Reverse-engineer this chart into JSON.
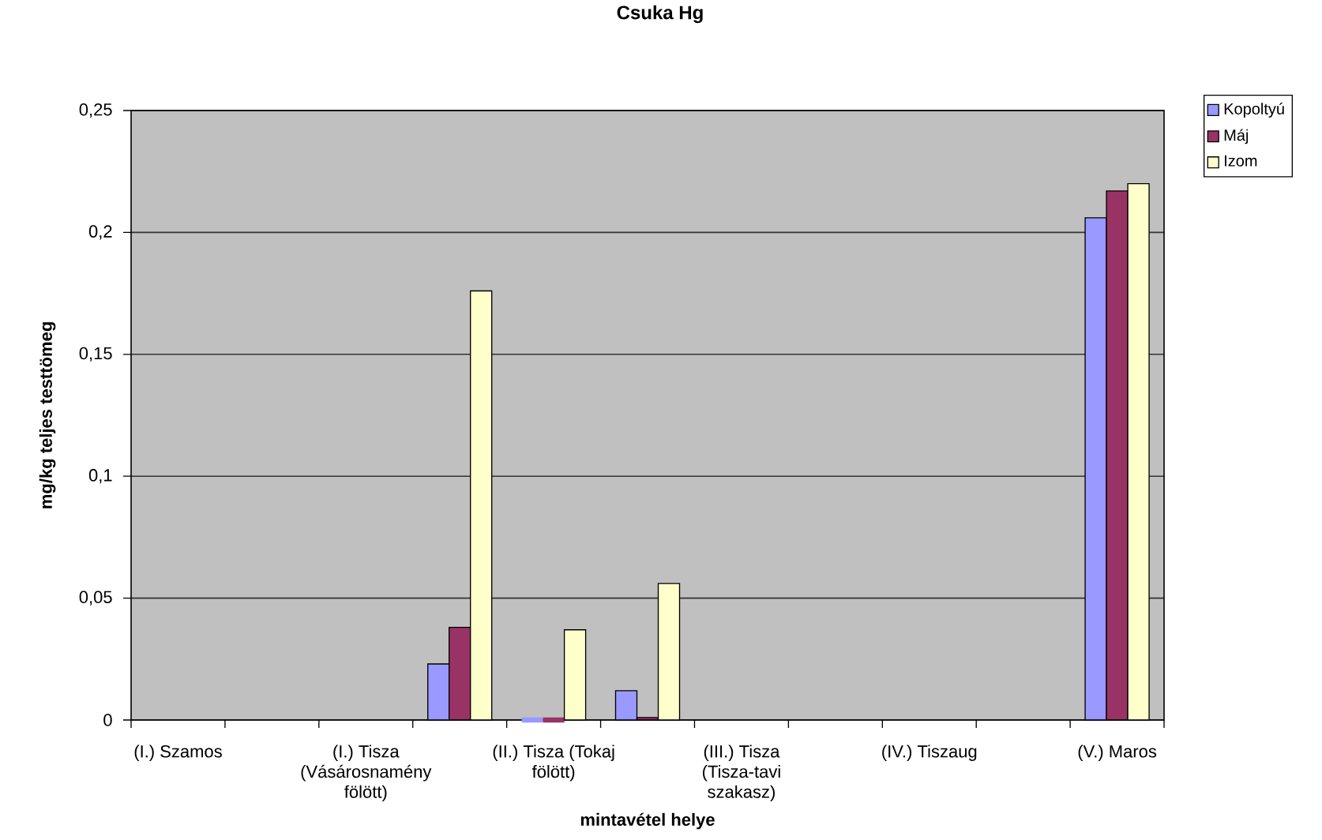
{
  "chart_data": {
    "type": "bar",
    "title": "Csuka Hg",
    "xlabel": "mintavétel helye",
    "ylabel": "mg/kg teljes testtömeg",
    "categories": [
      "(I.) Szamos",
      null,
      "(I.) Tisza (Vásárosnamény fölött)",
      null,
      "(II.) Tisza (Tokaj fölött)",
      null,
      "(III.) Tisza (Tisza-tavi szakasz)",
      null,
      "(IV.) Tiszaug",
      null,
      "(V.) Maros"
    ],
    "series": [
      {
        "name": "Kopoltyú",
        "color": "#9999ff",
        "values": [
          null,
          null,
          null,
          0.023,
          0,
          0.012,
          null,
          null,
          null,
          null,
          0.206
        ]
      },
      {
        "name": "Máj",
        "color": "#993366",
        "values": [
          null,
          null,
          null,
          0.038,
          0,
          0.001,
          null,
          null,
          null,
          null,
          0.217
        ]
      },
      {
        "name": "Izom",
        "color": "#ffffcc",
        "values": [
          null,
          null,
          null,
          0.176,
          0.037,
          0.056,
          null,
          null,
          null,
          null,
          0.22
        ]
      }
    ],
    "ylim": [
      0,
      0.25
    ],
    "yticks": [
      0,
      {
        "value": 0.05,
        "label": "0,05"
      },
      {
        "value": 0.1,
        "label": "0,1"
      },
      {
        "value": 0.15,
        "label": "0,15"
      },
      {
        "value": 0.2,
        "label": "0,2"
      },
      {
        "value": 0.25,
        "label": "0,25"
      }
    ],
    "grid": "y",
    "legend": "top right"
  }
}
